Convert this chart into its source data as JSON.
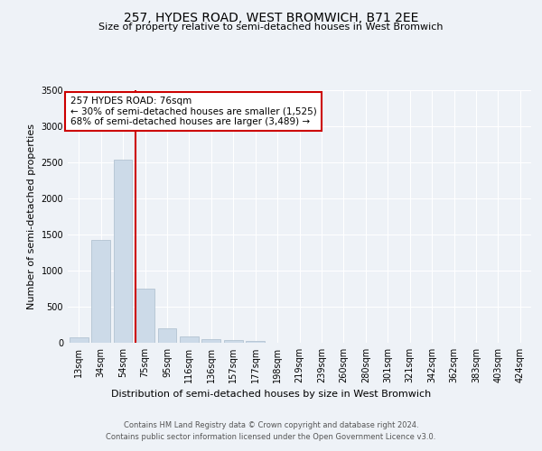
{
  "title": "257, HYDES ROAD, WEST BROMWICH, B71 2EE",
  "subtitle": "Size of property relative to semi-detached houses in West Bromwich",
  "xlabel": "Distribution of semi-detached houses by size in West Bromwich",
  "ylabel": "Number of semi-detached properties",
  "footer_line1": "Contains HM Land Registry data © Crown copyright and database right 2024.",
  "footer_line2": "Contains public sector information licensed under the Open Government Licence v3.0.",
  "bin_labels": [
    "13sqm",
    "34sqm",
    "54sqm",
    "75sqm",
    "95sqm",
    "116sqm",
    "136sqm",
    "157sqm",
    "177sqm",
    "198sqm",
    "219sqm",
    "239sqm",
    "260sqm",
    "280sqm",
    "301sqm",
    "321sqm",
    "342sqm",
    "362sqm",
    "383sqm",
    "403sqm",
    "424sqm"
  ],
  "bar_values": [
    75,
    1425,
    2535,
    745,
    205,
    85,
    55,
    40,
    25,
    0,
    0,
    0,
    0,
    0,
    0,
    0,
    0,
    0,
    0,
    0,
    0
  ],
  "bar_color": "#ccdae8",
  "bar_edge_color": "#aabccc",
  "annotation_title": "257 HYDES ROAD: 76sqm",
  "annotation_line1": "← 30% of semi-detached houses are smaller (1,525)",
  "annotation_line2": "68% of semi-detached houses are larger (3,489) →",
  "annotation_box_color": "#ffffff",
  "annotation_box_edge": "#cc0000",
  "vline_color": "#cc0000",
  "vline_x": 2.575,
  "ylim": [
    0,
    3500
  ],
  "yticks": [
    0,
    500,
    1000,
    1500,
    2000,
    2500,
    3000,
    3500
  ],
  "background_color": "#eef2f7",
  "plot_background": "#eef2f7",
  "title_fontsize": 10,
  "subtitle_fontsize": 8,
  "ylabel_fontsize": 8,
  "xlabel_fontsize": 8,
  "tick_fontsize": 7,
  "footer_fontsize": 6,
  "annot_fontsize": 7.5
}
